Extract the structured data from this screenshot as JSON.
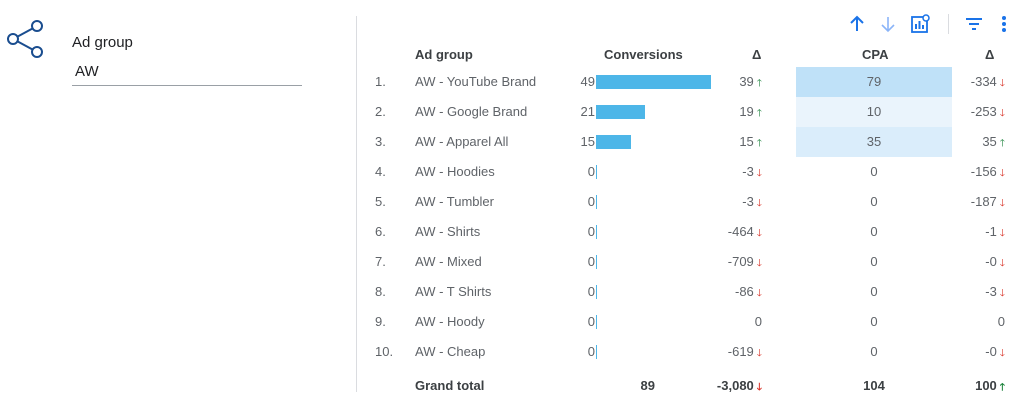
{
  "filter": {
    "label": "Ad group",
    "value": "AW"
  },
  "toolbar": {
    "sort_ascending": "arrow-up-icon",
    "sort_descending": "arrow-down-icon",
    "explore": "chart-explore-icon",
    "filter": "filter-icon",
    "more": "more-vert-icon"
  },
  "table": {
    "headers": {
      "ad_group": "Ad group",
      "conversions": "Conversions",
      "delta1": "Δ",
      "cpa": "CPA",
      "delta2": "Δ"
    },
    "rows": [
      {
        "idx": "1.",
        "name": "AW - YouTube Brand",
        "conversions": "49",
        "conv_value": 49,
        "delta_conv": "39",
        "delta_conv_dir": "up",
        "cpa": "79",
        "cpa_value": 79,
        "delta_cpa": "-334",
        "delta_cpa_dir": "down"
      },
      {
        "idx": "2.",
        "name": "AW - Google Brand",
        "conversions": "21",
        "conv_value": 21,
        "delta_conv": "19",
        "delta_conv_dir": "up",
        "cpa": "10",
        "cpa_value": 10,
        "delta_cpa": "-253",
        "delta_cpa_dir": "down"
      },
      {
        "idx": "3.",
        "name": "AW - Apparel All",
        "conversions": "15",
        "conv_value": 15,
        "delta_conv": "15",
        "delta_conv_dir": "up",
        "cpa": "35",
        "cpa_value": 35,
        "delta_cpa": "35",
        "delta_cpa_dir": "up"
      },
      {
        "idx": "4.",
        "name": "AW - Hoodies",
        "conversions": "0",
        "conv_value": 0,
        "delta_conv": "-3",
        "delta_conv_dir": "down",
        "cpa": "0",
        "cpa_value": 0,
        "delta_cpa": "-156",
        "delta_cpa_dir": "down"
      },
      {
        "idx": "5.",
        "name": "AW - Tumbler",
        "conversions": "0",
        "conv_value": 0,
        "delta_conv": "-3",
        "delta_conv_dir": "down",
        "cpa": "0",
        "cpa_value": 0,
        "delta_cpa": "-187",
        "delta_cpa_dir": "down"
      },
      {
        "idx": "6.",
        "name": "AW - Shirts",
        "conversions": "0",
        "conv_value": 0,
        "delta_conv": "-464",
        "delta_conv_dir": "down",
        "cpa": "0",
        "cpa_value": 0,
        "delta_cpa": "-1",
        "delta_cpa_dir": "down"
      },
      {
        "idx": "7.",
        "name": "AW - Mixed",
        "conversions": "0",
        "conv_value": 0,
        "delta_conv": "-709",
        "delta_conv_dir": "down",
        "cpa": "0",
        "cpa_value": 0,
        "delta_cpa": "-0",
        "delta_cpa_dir": "down"
      },
      {
        "idx": "8.",
        "name": "AW - T Shirts",
        "conversions": "0",
        "conv_value": 0,
        "delta_conv": "-86",
        "delta_conv_dir": "down",
        "cpa": "0",
        "cpa_value": 0,
        "delta_cpa": "-3",
        "delta_cpa_dir": "down"
      },
      {
        "idx": "9.",
        "name": "AW - Hoody",
        "conversions": "0",
        "conv_value": 0,
        "delta_conv": "0",
        "delta_conv_dir": "",
        "cpa": "0",
        "cpa_value": 0,
        "delta_cpa": "0",
        "delta_cpa_dir": ""
      },
      {
        "idx": "10.",
        "name": "AW - Cheap",
        "conversions": "0",
        "conv_value": 0,
        "delta_conv": "-619",
        "delta_conv_dir": "down",
        "cpa": "0",
        "cpa_value": 0,
        "delta_cpa": "-0",
        "delta_cpa_dir": "down"
      }
    ],
    "total": {
      "label": "Grand total",
      "conversions": "89",
      "delta_conv": "-3,080",
      "delta_conv_dir": "down",
      "cpa": "104",
      "delta_cpa": "100",
      "delta_cpa_dir": "up"
    }
  },
  "colors": {
    "bar": "#4db6e8",
    "heat_high": "#bfe1f8",
    "heat_low": "#f0f7fd",
    "up": "#188038",
    "down": "#d93025",
    "toolbar_icon": "#1a73e8"
  }
}
